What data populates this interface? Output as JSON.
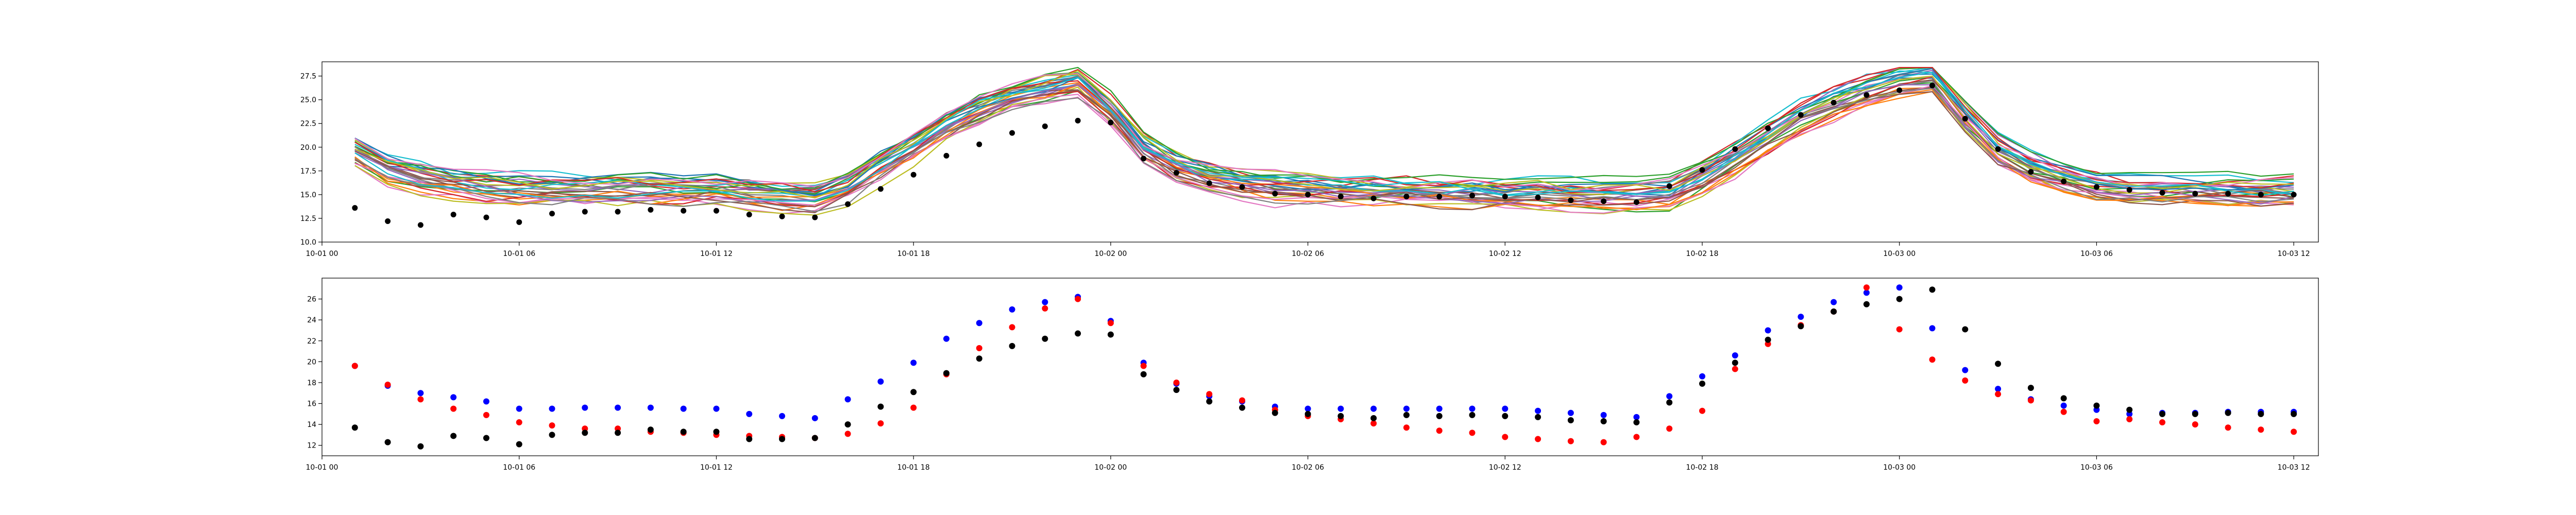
{
  "chart_data": [
    {
      "type": "line",
      "xlim": [
        "2023-10-01 00:00",
        "2023-10-03 12:45"
      ],
      "ylim": [
        10.0,
        29.0
      ],
      "y_ticks": [
        10.0,
        12.5,
        15.0,
        17.5,
        20.0,
        22.5,
        25.0,
        27.5
      ],
      "y_tick_labels": [
        "10.0",
        "12.5",
        "15.0",
        "17.5",
        "20.0",
        "22.5",
        "25.0",
        "27.5"
      ],
      "x_tick_labels": [
        "10-01 00",
        "10-01 06",
        "10-01 12",
        "10-01 18",
        "10-02 00",
        "10-02 06",
        "10-02 12",
        "10-02 18",
        "10-03 00",
        "10-03 06",
        "10-03 12"
      ],
      "x_ticks": [
        "2023-10-01 00:00",
        "2023-10-01 06:00",
        "2023-10-01 12:00",
        "2023-10-01 18:00",
        "2023-10-02 00:00",
        "2023-10-02 06:00",
        "2023-10-02 12:00",
        "2023-10-02 18:00",
        "2023-10-03 00:00",
        "2023-10-03 06:00",
        "2023-10-03 12:00"
      ],
      "grid": false,
      "ensemble": {
        "member_count": 30,
        "x": [
          "2023-10-01 01:00",
          "2023-10-01 02:00",
          "2023-10-01 03:00",
          "2023-10-01 04:00",
          "2023-10-01 05:00",
          "2023-10-01 06:00",
          "2023-10-01 07:00",
          "2023-10-01 08:00",
          "2023-10-01 09:00",
          "2023-10-01 10:00",
          "2023-10-01 11:00",
          "2023-10-01 12:00",
          "2023-10-01 13:00",
          "2023-10-01 14:00",
          "2023-10-01 15:00",
          "2023-10-01 16:00",
          "2023-10-01 17:00",
          "2023-10-01 18:00",
          "2023-10-01 19:00",
          "2023-10-01 20:00",
          "2023-10-01 21:00",
          "2023-10-01 22:00",
          "2023-10-01 23:00",
          "2023-10-02 00:00",
          "2023-10-02 01:00",
          "2023-10-02 02:00",
          "2023-10-02 03:00",
          "2023-10-02 04:00",
          "2023-10-02 05:00",
          "2023-10-02 06:00",
          "2023-10-02 07:00",
          "2023-10-02 08:00",
          "2023-10-02 09:00",
          "2023-10-02 10:00",
          "2023-10-02 11:00",
          "2023-10-02 12:00",
          "2023-10-02 13:00",
          "2023-10-02 14:00",
          "2023-10-02 15:00",
          "2023-10-02 16:00",
          "2023-10-02 17:00",
          "2023-10-02 18:00",
          "2023-10-02 19:00",
          "2023-10-02 20:00",
          "2023-10-02 21:00",
          "2023-10-02 22:00",
          "2023-10-02 23:00",
          "2023-10-03 00:00",
          "2023-10-03 01:00",
          "2023-10-03 02:00",
          "2023-10-03 03:00",
          "2023-10-03 04:00",
          "2023-10-03 05:00",
          "2023-10-03 06:00",
          "2023-10-03 07:00",
          "2023-10-03 08:00",
          "2023-10-03 09:00",
          "2023-10-03 10:00",
          "2023-10-03 11:00",
          "2023-10-03 12:00"
        ],
        "mean": [
          19.5,
          17.6,
          16.8,
          16.2,
          15.8,
          15.6,
          15.5,
          15.5,
          15.6,
          15.6,
          15.6,
          15.6,
          15.3,
          15.0,
          14.8,
          16.0,
          18.2,
          20.2,
          22.3,
          24.0,
          25.3,
          26.2,
          27.0,
          24.0,
          20.0,
          17.9,
          16.8,
          16.2,
          15.8,
          15.6,
          15.5,
          15.5,
          15.4,
          15.3,
          15.3,
          15.2,
          15.2,
          15.0,
          14.9,
          14.8,
          15.0,
          16.7,
          18.7,
          20.8,
          22.9,
          24.6,
          25.9,
          26.8,
          27.3,
          23.2,
          19.7,
          17.9,
          16.8,
          16.0,
          15.6,
          15.4,
          15.3,
          15.3,
          15.3,
          15.3
        ],
        "colors": [
          "#1f77b4",
          "#ff7f0e",
          "#2ca02c",
          "#d62728",
          "#9467bd",
          "#8c564b",
          "#e377c2",
          "#7f7f7f",
          "#bcbd22",
          "#17becf"
        ]
      },
      "observations": {
        "x": [
          "2023-10-01 01:00",
          "2023-10-01 02:00",
          "2023-10-01 03:00",
          "2023-10-01 04:00",
          "2023-10-01 05:00",
          "2023-10-01 06:00",
          "2023-10-01 07:00",
          "2023-10-01 08:00",
          "2023-10-01 09:00",
          "2023-10-01 10:00",
          "2023-10-01 11:00",
          "2023-10-01 12:00",
          "2023-10-01 13:00",
          "2023-10-01 14:00",
          "2023-10-01 15:00",
          "2023-10-01 16:00",
          "2023-10-01 17:00",
          "2023-10-01 18:00",
          "2023-10-01 19:00",
          "2023-10-01 20:00",
          "2023-10-01 21:00",
          "2023-10-01 22:00",
          "2023-10-01 23:00",
          "2023-10-02 00:00",
          "2023-10-02 01:00",
          "2023-10-02 02:00",
          "2023-10-02 03:00",
          "2023-10-02 04:00",
          "2023-10-02 05:00",
          "2023-10-02 06:00",
          "2023-10-02 07:00",
          "2023-10-02 08:00",
          "2023-10-02 09:00",
          "2023-10-02 10:00",
          "2023-10-02 11:00",
          "2023-10-02 12:00",
          "2023-10-02 13:00",
          "2023-10-02 14:00",
          "2023-10-02 15:00",
          "2023-10-02 16:00",
          "2023-10-02 17:00",
          "2023-10-02 18:00",
          "2023-10-02 19:00",
          "2023-10-02 20:00",
          "2023-10-02 21:00",
          "2023-10-02 22:00",
          "2023-10-02 23:00",
          "2023-10-03 00:00",
          "2023-10-03 01:00",
          "2023-10-03 02:00",
          "2023-10-03 03:00",
          "2023-10-03 04:00",
          "2023-10-03 05:00",
          "2023-10-03 06:00",
          "2023-10-03 07:00",
          "2023-10-03 08:00",
          "2023-10-03 09:00",
          "2023-10-03 10:00",
          "2023-10-03 11:00",
          "2023-10-03 12:00"
        ],
        "values": [
          13.6,
          12.2,
          11.8,
          12.9,
          12.6,
          12.1,
          13.0,
          13.2,
          13.2,
          13.4,
          13.3,
          13.3,
          12.9,
          12.7,
          12.6,
          14.0,
          15.6,
          17.1,
          19.1,
          20.3,
          21.5,
          22.2,
          22.8,
          22.6,
          18.8,
          17.3,
          16.2,
          15.8,
          15.1,
          15.0,
          14.8,
          14.6,
          14.8,
          14.8,
          14.9,
          14.8,
          14.7,
          14.4,
          14.3,
          14.2,
          15.9,
          17.6,
          19.8,
          22.0,
          23.4,
          24.7,
          25.5,
          26.0,
          26.5,
          23.0,
          19.8,
          17.4,
          16.4,
          15.8,
          15.5,
          15.2,
          15.1,
          15.1,
          15.0,
          15.0
        ],
        "color": "#000000"
      }
    },
    {
      "type": "scatter",
      "xlim": [
        "2023-10-01 00:00",
        "2023-10-03 12:45"
      ],
      "ylim": [
        11.0,
        28.0
      ],
      "y_ticks": [
        12,
        14,
        16,
        18,
        20,
        22,
        24,
        26
      ],
      "y_tick_labels": [
        "12",
        "14",
        "16",
        "18",
        "20",
        "22",
        "24",
        "26"
      ],
      "x_tick_labels": [
        "10-01 00",
        "10-01 06",
        "10-01 12",
        "10-01 18",
        "10-02 00",
        "10-02 06",
        "10-02 12",
        "10-02 18",
        "10-03 00",
        "10-03 06",
        "10-03 12"
      ],
      "x_ticks": [
        "2023-10-01 00:00",
        "2023-10-01 06:00",
        "2023-10-01 12:00",
        "2023-10-01 18:00",
        "2023-10-02 00:00",
        "2023-10-02 06:00",
        "2023-10-02 12:00",
        "2023-10-02 18:00",
        "2023-10-03 00:00",
        "2023-10-03 06:00",
        "2023-10-03 12:00"
      ],
      "grid": false,
      "x": [
        "2023-10-01 01:00",
        "2023-10-01 02:00",
        "2023-10-01 03:00",
        "2023-10-01 04:00",
        "2023-10-01 05:00",
        "2023-10-01 06:00",
        "2023-10-01 07:00",
        "2023-10-01 08:00",
        "2023-10-01 09:00",
        "2023-10-01 10:00",
        "2023-10-01 11:00",
        "2023-10-01 12:00",
        "2023-10-01 13:00",
        "2023-10-01 14:00",
        "2023-10-01 15:00",
        "2023-10-01 16:00",
        "2023-10-01 17:00",
        "2023-10-01 18:00",
        "2023-10-01 19:00",
        "2023-10-01 20:00",
        "2023-10-01 21:00",
        "2023-10-01 22:00",
        "2023-10-01 23:00",
        "2023-10-02 00:00",
        "2023-10-02 01:00",
        "2023-10-02 02:00",
        "2023-10-02 03:00",
        "2023-10-02 04:00",
        "2023-10-02 05:00",
        "2023-10-02 06:00",
        "2023-10-02 07:00",
        "2023-10-02 08:00",
        "2023-10-02 09:00",
        "2023-10-02 10:00",
        "2023-10-02 11:00",
        "2023-10-02 12:00",
        "2023-10-02 13:00",
        "2023-10-02 14:00",
        "2023-10-02 15:00",
        "2023-10-02 16:00",
        "2023-10-02 17:00",
        "2023-10-02 18:00",
        "2023-10-02 19:00",
        "2023-10-02 20:00",
        "2023-10-02 21:00",
        "2023-10-02 22:00",
        "2023-10-02 23:00",
        "2023-10-03 00:00",
        "2023-10-03 01:00",
        "2023-10-03 02:00",
        "2023-10-03 03:00",
        "2023-10-03 04:00",
        "2023-10-03 05:00",
        "2023-10-03 06:00",
        "2023-10-03 07:00",
        "2023-10-03 08:00",
        "2023-10-03 09:00",
        "2023-10-03 10:00",
        "2023-10-03 11:00",
        "2023-10-03 12:00"
      ],
      "series": [
        {
          "color": "#0000ff",
          "values": [
            19.6,
            17.7,
            17.0,
            16.6,
            16.2,
            15.5,
            15.5,
            15.6,
            15.6,
            15.6,
            15.5,
            15.5,
            15.0,
            14.8,
            14.6,
            16.4,
            18.1,
            19.9,
            22.2,
            23.7,
            25.0,
            25.7,
            26.2,
            23.9,
            19.9,
            17.9,
            16.7,
            16.2,
            15.7,
            15.5,
            15.5,
            15.5,
            15.5,
            15.5,
            15.5,
            15.5,
            15.3,
            15.1,
            14.9,
            14.7,
            16.7,
            18.6,
            20.6,
            23.0,
            24.3,
            25.7,
            26.6,
            27.1,
            23.2,
            19.2,
            17.4,
            16.4,
            15.8,
            15.4,
            15.0,
            15.1,
            15.1,
            15.2,
            15.2,
            15.2
          ]
        },
        {
          "color": "#ff0000",
          "values": [
            19.6,
            17.8,
            16.4,
            15.5,
            14.9,
            14.2,
            13.9,
            13.6,
            13.6,
            13.3,
            13.2,
            13.0,
            12.9,
            12.8,
            12.7,
            13.1,
            14.1,
            15.6,
            18.8,
            21.3,
            23.3,
            25.1,
            26.0,
            23.7,
            19.6,
            18.0,
            16.9,
            16.3,
            15.4,
            14.8,
            14.5,
            14.1,
            13.7,
            13.4,
            13.2,
            12.8,
            12.6,
            12.4,
            12.3,
            12.8,
            13.6,
            15.3,
            19.3,
            21.7,
            23.5,
            24.8,
            27.1,
            23.1,
            20.2,
            18.2,
            16.9,
            16.3,
            15.2,
            14.3,
            14.5,
            14.2,
            14.0,
            13.7,
            13.5,
            13.3
          ]
        },
        {
          "color": "#000000",
          "values": [
            13.7,
            12.3,
            11.9,
            12.9,
            12.7,
            12.1,
            13.0,
            13.2,
            13.2,
            13.5,
            13.3,
            13.3,
            12.6,
            12.6,
            12.7,
            14.0,
            15.7,
            17.1,
            18.9,
            20.3,
            21.5,
            22.2,
            22.7,
            22.6,
            18.8,
            17.3,
            16.2,
            15.6,
            15.1,
            15.0,
            14.8,
            14.6,
            14.9,
            14.8,
            14.9,
            14.8,
            14.7,
            14.4,
            14.3,
            14.2,
            16.1,
            17.9,
            19.9,
            22.1,
            23.4,
            24.8,
            25.5,
            26.0,
            26.9,
            23.1,
            19.8,
            17.5,
            16.5,
            15.8,
            15.4,
            15.0,
            15.0,
            15.1,
            15.0,
            15.0
          ]
        }
      ]
    }
  ]
}
